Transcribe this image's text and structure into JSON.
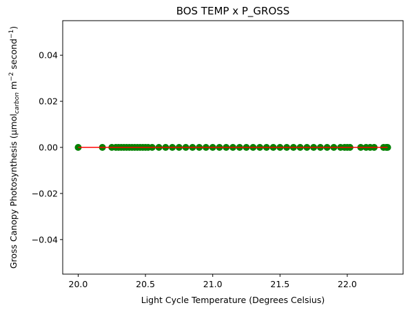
{
  "chart_data": {
    "type": "scatter",
    "title": "BOS TEMP x P_GROSS",
    "xlabel": "Light Cycle Temperature (Degrees Celsius)",
    "ylabel": {
      "prefix": "Gross Canopy Photosynthesis (μmol",
      "subscript": "carbon",
      "middle": " m",
      "sup1": "−2",
      "after": " second",
      "sup2": "−1",
      "suffix": ")"
    },
    "xlim": [
      19.885,
      22.415
    ],
    "ylim": [
      -0.055,
      0.055
    ],
    "x_ticks": [
      {
        "value": 20.0,
        "label": "20.0"
      },
      {
        "value": 20.5,
        "label": "20.5"
      },
      {
        "value": 21.0,
        "label": "21.0"
      },
      {
        "value": 21.5,
        "label": "21.5"
      },
      {
        "value": 22.0,
        "label": "22.0"
      }
    ],
    "y_ticks": [
      {
        "value": 0.04,
        "label": "0.04"
      },
      {
        "value": 0.02,
        "label": "0.02"
      },
      {
        "value": 0.0,
        "label": "0.00"
      },
      {
        "value": -0.02,
        "label": "−0.02"
      },
      {
        "value": -0.04,
        "label": "−0.04"
      }
    ],
    "grid": false,
    "legend": "none",
    "series": [
      {
        "kind": "scatter",
        "color": "#008000",
        "points": [
          [
            20.0,
            0
          ],
          [
            20.18,
            0
          ],
          [
            20.25,
            0
          ],
          [
            20.28,
            0
          ],
          [
            20.3,
            0
          ],
          [
            20.32,
            0
          ],
          [
            20.34,
            0
          ],
          [
            20.36,
            0
          ],
          [
            20.38,
            0
          ],
          [
            20.4,
            0
          ],
          [
            20.42,
            0
          ],
          [
            20.44,
            0
          ],
          [
            20.46,
            0
          ],
          [
            20.48,
            0
          ],
          [
            20.5,
            0
          ],
          [
            20.52,
            0
          ],
          [
            20.55,
            0
          ],
          [
            20.6,
            0
          ],
          [
            20.65,
            0
          ],
          [
            20.7,
            0
          ],
          [
            20.75,
            0
          ],
          [
            20.8,
            0
          ],
          [
            20.85,
            0
          ],
          [
            20.9,
            0
          ],
          [
            20.95,
            0
          ],
          [
            21.0,
            0
          ],
          [
            21.05,
            0
          ],
          [
            21.1,
            0
          ],
          [
            21.15,
            0
          ],
          [
            21.2,
            0
          ],
          [
            21.25,
            0
          ],
          [
            21.3,
            0
          ],
          [
            21.35,
            0
          ],
          [
            21.4,
            0
          ],
          [
            21.45,
            0
          ],
          [
            21.5,
            0
          ],
          [
            21.55,
            0
          ],
          [
            21.6,
            0
          ],
          [
            21.65,
            0
          ],
          [
            21.7,
            0
          ],
          [
            21.75,
            0
          ],
          [
            21.8,
            0
          ],
          [
            21.85,
            0
          ],
          [
            21.9,
            0
          ],
          [
            21.95,
            0
          ],
          [
            21.98,
            0
          ],
          [
            22.0,
            0
          ],
          [
            22.02,
            0
          ],
          [
            22.1,
            0
          ],
          [
            22.14,
            0
          ],
          [
            22.17,
            0
          ],
          [
            22.2,
            0
          ],
          [
            22.27,
            0
          ],
          [
            22.29,
            0
          ],
          [
            22.3,
            0
          ]
        ]
      },
      {
        "kind": "line",
        "color": "#ff0000",
        "points": [
          [
            20.0,
            0
          ],
          [
            22.3,
            0
          ]
        ]
      }
    ]
  }
}
